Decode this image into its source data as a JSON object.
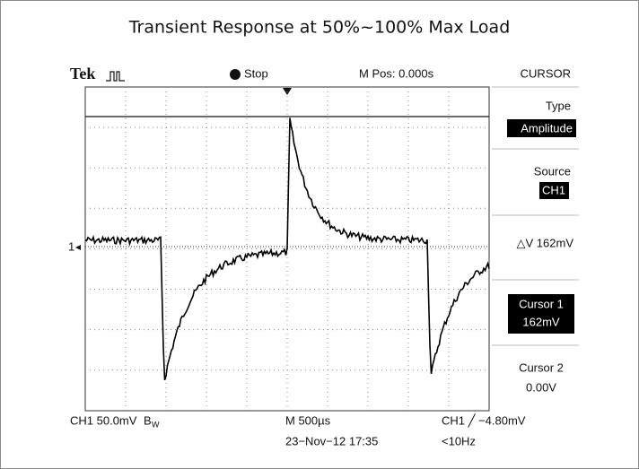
{
  "title": "Transient Response at 50%~100% Max Load",
  "scope": {
    "brand": "Tek",
    "run_state": "Stop",
    "position": "M Pos: 0.000s",
    "ch_marker": "1",
    "menu": {
      "header": "CURSOR",
      "type_label": "Type",
      "type_value": "Amplitude",
      "source_label": "Source",
      "source_value": "CH1",
      "delta": "△V 162mV",
      "cursor1_label": "Cursor 1",
      "cursor1_value": "162mV",
      "cursor2_label": "Cursor 2",
      "cursor2_value": "0.00V"
    },
    "footer": {
      "channel_scale": "CH1  50.0mV",
      "bw": "B",
      "bw_sub": "W",
      "timebase": "M 500µs",
      "trigger": "CH1 ╱ −4.80mV",
      "date": "23−Nov−12 17:35",
      "freq": "<10Hz"
    }
  }
}
